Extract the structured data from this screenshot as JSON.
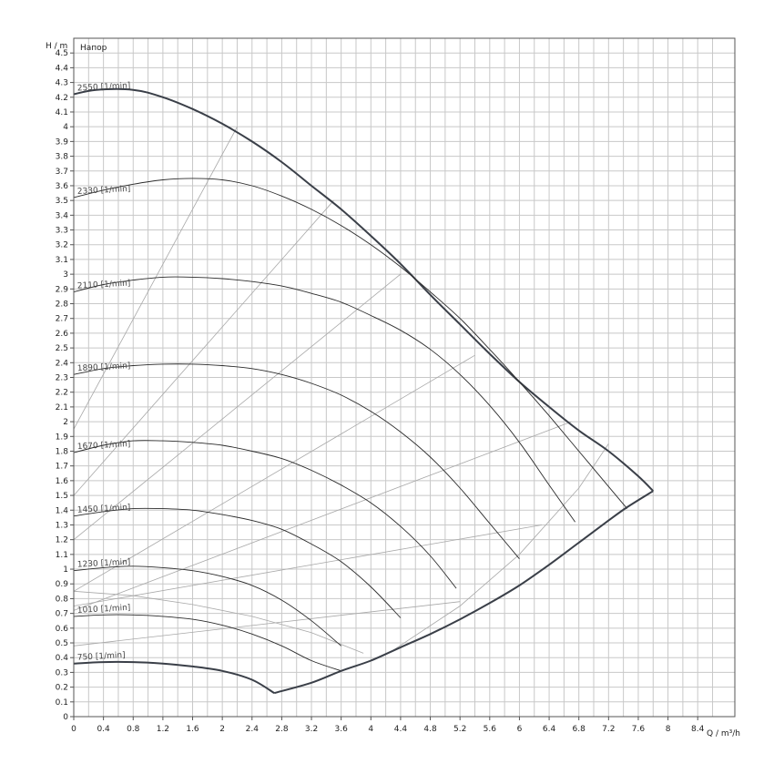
{
  "chart_data": {
    "type": "line",
    "title": "Напор",
    "xlabel": "Q / m³/h",
    "ylabel": "H / m",
    "xlim": [
      0,
      8.9
    ],
    "ylim": [
      0,
      4.6
    ],
    "grid": true,
    "x_ticks": [
      "0",
      "0.4",
      "0.8",
      "1.2",
      "1.6",
      "2",
      "2.4",
      "2.8",
      "3.2",
      "3.6",
      "4",
      "4.4",
      "4.8",
      "5.2",
      "5.6",
      "6",
      "6.4",
      "6.8",
      "7.2",
      "7.6",
      "8",
      "8.4"
    ],
    "y_ticks": [
      "0",
      "0.1",
      "0.2",
      "0.3",
      "0.4",
      "0.5",
      "0.6",
      "0.7",
      "0.8",
      "0.9",
      "1",
      "1.1",
      "1.2",
      "1.3",
      "1.4",
      "1.5",
      "1.6",
      "1.7",
      "1.8",
      "1.9",
      "2",
      "2.1",
      "2.2",
      "2.3",
      "2.4",
      "2.5",
      "2.6",
      "2.7",
      "2.8",
      "2.9",
      "3",
      "3.1",
      "3.2",
      "3.3",
      "3.4",
      "3.5",
      "3.6",
      "3.7",
      "3.8",
      "3.9",
      "4",
      "4.1",
      "4.2",
      "4.3",
      "4.4",
      "4.5"
    ],
    "series": [
      {
        "name": "2550 [1/min]",
        "label": "2550 [1/min]",
        "x": [
          0,
          0.3,
          0.8,
          1.2,
          1.6,
          2.0,
          2.4,
          2.8,
          3.2,
          3.6,
          4.0,
          4.4,
          4.8,
          5.2,
          5.6,
          6.0,
          6.4,
          6.8,
          7.2,
          7.6,
          7.8
        ],
        "y": [
          4.22,
          4.25,
          4.25,
          4.2,
          4.12,
          4.02,
          3.9,
          3.76,
          3.6,
          3.44,
          3.26,
          3.07,
          2.86,
          2.66,
          2.46,
          2.27,
          2.1,
          1.94,
          1.8,
          1.63,
          1.53
        ]
      },
      {
        "name": "2330 [1/min]",
        "label": "2330 [1/min]",
        "x": [
          0,
          0.4,
          0.8,
          1.2,
          1.6,
          2.0,
          2.4,
          2.8,
          3.2,
          3.6,
          4.0,
          4.4,
          4.8,
          5.2,
          5.6,
          6.0,
          6.4,
          6.8,
          7.2,
          7.45
        ],
        "y": [
          3.52,
          3.57,
          3.61,
          3.64,
          3.65,
          3.64,
          3.6,
          3.53,
          3.44,
          3.33,
          3.2,
          3.05,
          2.88,
          2.7,
          2.49,
          2.27,
          2.04,
          1.8,
          1.56,
          1.41
        ]
      },
      {
        "name": "2110 [1/min]",
        "label": "2110 [1/min]",
        "x": [
          0,
          0.4,
          0.8,
          1.2,
          1.6,
          2.0,
          2.4,
          2.8,
          3.2,
          3.6,
          4.0,
          4.4,
          4.8,
          5.2,
          5.6,
          6.0,
          6.4,
          6.75
        ],
        "y": [
          2.88,
          2.93,
          2.96,
          2.98,
          2.98,
          2.97,
          2.95,
          2.92,
          2.87,
          2.81,
          2.72,
          2.62,
          2.49,
          2.32,
          2.11,
          1.86,
          1.57,
          1.32
        ]
      },
      {
        "name": "1890 [1/min]",
        "label": "1890 [1/min]",
        "x": [
          0,
          0.4,
          0.8,
          1.2,
          1.6,
          2.0,
          2.4,
          2.8,
          3.2,
          3.6,
          4.0,
          4.4,
          4.8,
          5.2,
          5.6,
          6.0
        ],
        "y": [
          2.32,
          2.36,
          2.38,
          2.39,
          2.39,
          2.38,
          2.36,
          2.32,
          2.26,
          2.18,
          2.07,
          1.93,
          1.76,
          1.55,
          1.31,
          1.07
        ]
      },
      {
        "name": "1670 [1/min]",
        "label": "1670 [1/min]",
        "x": [
          0,
          0.4,
          0.8,
          1.2,
          1.6,
          2.0,
          2.4,
          2.8,
          3.2,
          3.6,
          4.0,
          4.4,
          4.8,
          5.15
        ],
        "y": [
          1.79,
          1.84,
          1.87,
          1.87,
          1.86,
          1.84,
          1.8,
          1.75,
          1.67,
          1.57,
          1.45,
          1.29,
          1.09,
          0.87
        ]
      },
      {
        "name": "1450 [1/min]",
        "label": "1450 [1/min]",
        "x": [
          0,
          0.4,
          0.8,
          1.2,
          1.6,
          2.0,
          2.4,
          2.8,
          3.2,
          3.6,
          4.0,
          4.4
        ],
        "y": [
          1.36,
          1.39,
          1.41,
          1.41,
          1.4,
          1.37,
          1.33,
          1.27,
          1.17,
          1.05,
          0.88,
          0.67
        ]
      },
      {
        "name": "1230 [1/min]",
        "label": "1230 [1/min]",
        "x": [
          0,
          0.4,
          0.8,
          1.2,
          1.6,
          2.0,
          2.4,
          2.8,
          3.2,
          3.6
        ],
        "y": [
          0.99,
          1.01,
          1.02,
          1.01,
          0.99,
          0.95,
          0.89,
          0.79,
          0.65,
          0.48
        ]
      },
      {
        "name": "1010 [1/min]",
        "label": "1010 [1/min]",
        "x": [
          0,
          0.4,
          0.8,
          1.2,
          1.6,
          2.0,
          2.4,
          2.8,
          3.2,
          3.6
        ],
        "y": [
          0.68,
          0.69,
          0.69,
          0.68,
          0.66,
          0.62,
          0.56,
          0.48,
          0.38,
          0.31
        ]
      },
      {
        "name": "750 [1/min]",
        "label": "750 [1/min]",
        "x": [
          0,
          0.4,
          0.8,
          1.2,
          1.6,
          2.0,
          2.4,
          2.7
        ],
        "y": [
          0.36,
          0.37,
          0.37,
          0.36,
          0.34,
          0.31,
          0.25,
          0.16
        ]
      },
      {
        "name": "envelope",
        "x": [
          2.7,
          3.2,
          3.6,
          4.0,
          4.4,
          4.8,
          5.2,
          5.6,
          6.0,
          6.4,
          6.8,
          7.2,
          7.45,
          7.8
        ],
        "y": [
          0.16,
          0.23,
          0.31,
          0.38,
          0.47,
          0.56,
          0.66,
          0.77,
          0.89,
          1.03,
          1.18,
          1.33,
          1.42,
          1.53
        ]
      }
    ],
    "system_curves": [
      {
        "x": [
          0,
          2.2
        ],
        "y": [
          1.95,
          4.0
        ]
      },
      {
        "x": [
          0,
          3.5
        ],
        "y": [
          1.5,
          3.5
        ]
      },
      {
        "x": [
          0,
          4.4
        ],
        "y": [
          1.2,
          3.0
        ]
      },
      {
        "x": [
          0,
          5.4
        ],
        "y": [
          0.85,
          2.45
        ]
      },
      {
        "x": [
          0,
          6.7
        ],
        "y": [
          0.72,
          2.0
        ]
      },
      {
        "x": [
          0,
          6.3
        ],
        "y": [
          0.75,
          1.3
        ]
      },
      {
        "x": [
          0,
          5.2
        ],
        "y": [
          0.48,
          0.78
        ]
      },
      {
        "x": [
          0,
          0.8,
          1.6,
          2.4,
          3.2,
          3.9
        ],
        "y": [
          0.85,
          0.82,
          0.76,
          0.68,
          0.57,
          0.43
        ]
      },
      {
        "x": [
          4.3,
          5.2,
          6.0,
          6.8,
          7.2
        ],
        "y": [
          0.45,
          0.75,
          1.1,
          1.55,
          1.85
        ]
      }
    ]
  }
}
